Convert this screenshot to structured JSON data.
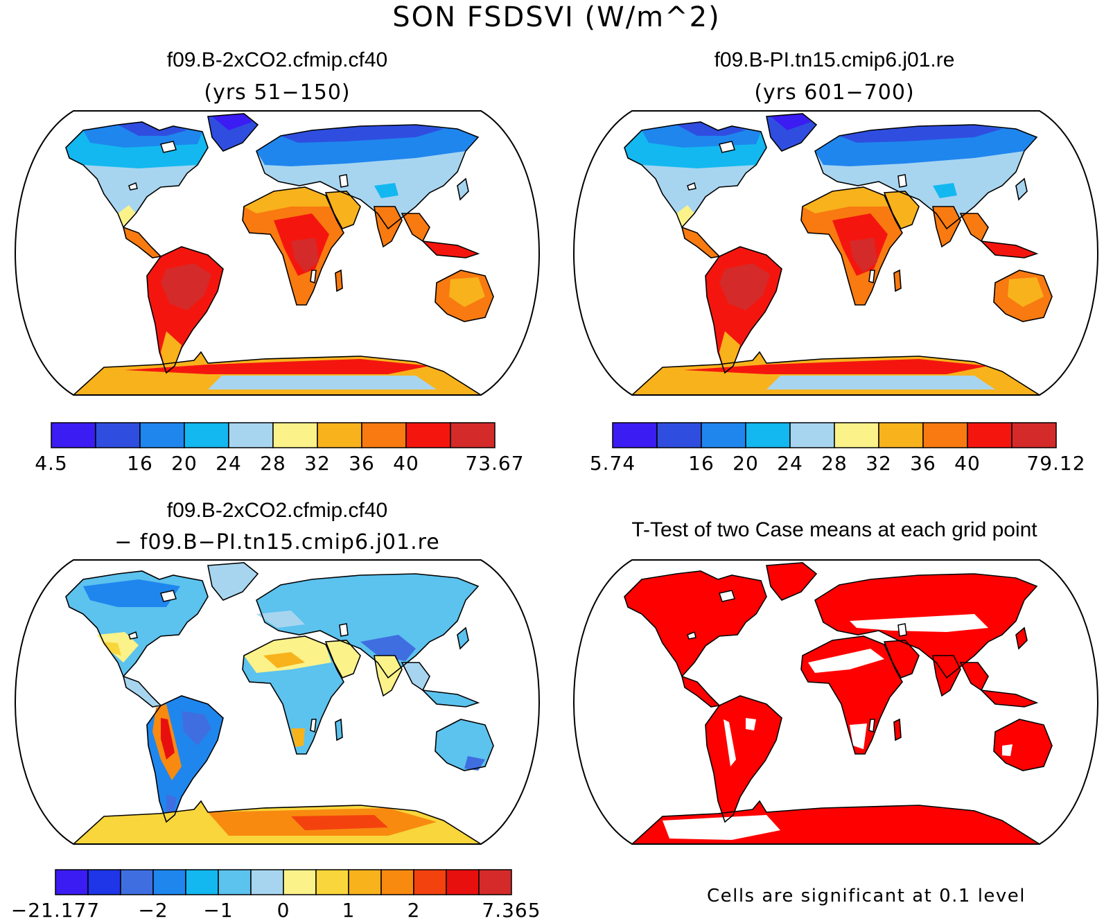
{
  "title": "SON FSDSVI (W/m^2)",
  "palettes": {
    "abs": [
      "#3b1cf2",
      "#2f4ee0",
      "#1f86ee",
      "#13b8f0",
      "#a7d5f0",
      "#fbf28a",
      "#f8b21c",
      "#f87a10",
      "#f4160e",
      "#d42a2a"
    ],
    "diff": [
      "#3b1cf2",
      "#1f35e8",
      "#3f6ee0",
      "#1f86ee",
      "#13b8f0",
      "#5cc2ee",
      "#a7d5f0",
      "#fbf28a",
      "#f8d63c",
      "#f8b21c",
      "#f88a10",
      "#f4420e",
      "#e8100e",
      "#d42a2a"
    ]
  },
  "panels": [
    {
      "id": "case1",
      "title": "f09.B-2xCO2.cfmip.cf40",
      "subtitle": "(yrs 51−150)",
      "colorbar_labels": [
        {
          "text": "4.5",
          "boundary": 0
        },
        {
          "text": "16",
          "boundary": 2
        },
        {
          "text": "20",
          "boundary": 3
        },
        {
          "text": "24",
          "boundary": 4
        },
        {
          "text": "28",
          "boundary": 5
        },
        {
          "text": "32",
          "boundary": 6
        },
        {
          "text": "36",
          "boundary": 7
        },
        {
          "text": "40",
          "boundary": 8
        },
        {
          "text": "73.67",
          "boundary": 10
        }
      ]
    },
    {
      "id": "case2",
      "title": "f09.B-PI.tn15.cmip6.j01.re",
      "subtitle": "(yrs 601−700)",
      "colorbar_labels": [
        {
          "text": "5.74",
          "boundary": 0
        },
        {
          "text": "16",
          "boundary": 2
        },
        {
          "text": "20",
          "boundary": 3
        },
        {
          "text": "24",
          "boundary": 4
        },
        {
          "text": "28",
          "boundary": 5
        },
        {
          "text": "32",
          "boundary": 6
        },
        {
          "text": "36",
          "boundary": 7
        },
        {
          "text": "40",
          "boundary": 8
        },
        {
          "text": "79.12",
          "boundary": 10
        }
      ]
    },
    {
      "id": "diff",
      "title": "f09.B-2xCO2.cfmip.cf40",
      "subtitle": "− f09.B−PI.tn15.cmip6.j01.re",
      "colorbar_labels": [
        {
          "text": "−21.177",
          "boundary": 0
        },
        {
          "text": "−2",
          "boundary": 3
        },
        {
          "text": "−1",
          "boundary": 5
        },
        {
          "text": "0",
          "boundary": 7
        },
        {
          "text": "1",
          "boundary": 9
        },
        {
          "text": "2",
          "boundary": 11
        },
        {
          "text": "7.365",
          "boundary": 14
        }
      ]
    },
    {
      "id": "ttest",
      "title": "T-Test of two Case means at each grid point",
      "note": "Cells are significant at 0.1 level"
    }
  ]
}
